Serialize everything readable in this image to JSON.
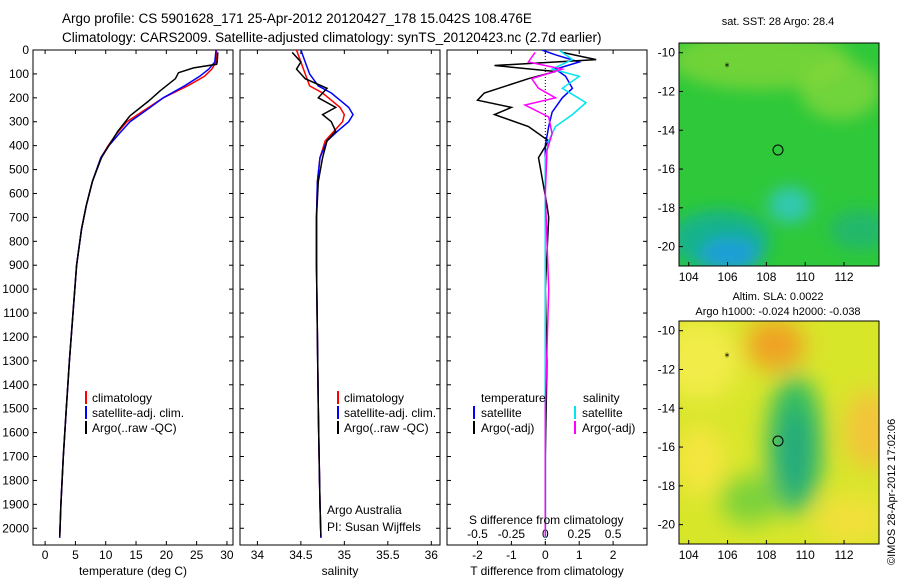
{
  "header": {
    "title_line1": "Argo profile: CS 5901628_171 25-Apr-2012 20120427_178 15.042S 108.476E",
    "title_line2": "Climatology: CARS2009. Satellite-adjusted climatology: synTS_20120423.nc (2.7d earlier)"
  },
  "colors": {
    "climatology": "#ff0000",
    "satellite": "#0000ff",
    "argo": "#000000",
    "salinity_satellite": "#00e5ee",
    "salinity_argo": "#ff00ff"
  },
  "chart_data": [
    {
      "type": "line",
      "name": "temperature-profile",
      "xlabel": "temperature (deg C)",
      "xlim": [
        -2,
        31
      ],
      "ylim": [
        2070,
        0
      ],
      "xticks": [
        "0",
        "5",
        "10",
        "15",
        "20",
        "25",
        "30"
      ],
      "xtick_values": [
        0,
        5,
        10,
        15,
        20,
        25,
        30
      ],
      "yticks": [
        "0",
        "100",
        "200",
        "300",
        "400",
        "500",
        "600",
        "700",
        "800",
        "900",
        "1000",
        "1100",
        "1200",
        "1300",
        "1400",
        "1500",
        "1600",
        "1700",
        "1800",
        "1900",
        "2000"
      ],
      "ytick_values": [
        0,
        100,
        200,
        300,
        400,
        500,
        600,
        700,
        800,
        900,
        1000,
        1100,
        1200,
        1300,
        1400,
        1500,
        1600,
        1700,
        1800,
        1900,
        2000
      ],
      "legend": [
        "climatology",
        "satellite-adj. clim.",
        "Argo(..raw -QC)"
      ],
      "series": [
        {
          "name": "climatology",
          "color": "#ff0000",
          "x": [
            28.3,
            28.2,
            27.5,
            26.3,
            23.5,
            19.5,
            16.5,
            13.5,
            11.8,
            10.4,
            9.2,
            7.8,
            6.8,
            6.0,
            5.2,
            4.6,
            4.0,
            3.5,
            3.0,
            2.6,
            2.4
          ],
          "y": [
            0,
            50,
            80,
            110,
            150,
            200,
            250,
            300,
            350,
            400,
            450,
            550,
            650,
            750,
            900,
            1100,
            1300,
            1500,
            1700,
            1900,
            2040
          ]
        },
        {
          "name": "satellite-adj. clim.",
          "color": "#0000ff",
          "x": [
            28.2,
            28.0,
            27.0,
            25.5,
            23.0,
            19.5,
            16.8,
            14.0,
            12.2,
            10.5,
            9.2,
            7.8,
            6.8,
            6.0,
            5.2,
            4.6,
            4.0,
            3.5,
            3.0,
            2.6,
            2.4
          ],
          "y": [
            0,
            50,
            80,
            110,
            150,
            200,
            250,
            300,
            350,
            400,
            450,
            550,
            650,
            750,
            900,
            1100,
            1300,
            1500,
            1700,
            1900,
            2040
          ]
        },
        {
          "name": "Argo(..raw -QC)",
          "color": "#000000",
          "x": [
            28.5,
            28.4,
            28.3,
            24.5,
            22.0,
            21.5,
            19.0,
            17.0,
            14.0,
            12.0,
            10.5,
            9.3,
            7.8,
            6.8,
            6.0,
            5.2,
            4.6,
            4.0,
            3.5,
            3.0,
            2.6,
            2.4
          ],
          "y": [
            10,
            50,
            60,
            75,
            95,
            120,
            170,
            215,
            275,
            340,
            400,
            450,
            550,
            650,
            750,
            900,
            1100,
            1300,
            1500,
            1700,
            1900,
            2035
          ]
        }
      ]
    },
    {
      "type": "line",
      "name": "salinity-profile",
      "xlabel": "salinity",
      "xlim": [
        33.8,
        36.1
      ],
      "ylim": [
        2070,
        0
      ],
      "xticks": [
        "34",
        "34.5",
        "35",
        "35.5",
        "36"
      ],
      "xtick_values": [
        34,
        34.5,
        35,
        35.5,
        36
      ],
      "legend": [
        "climatology",
        "satellite-adj. clim.",
        "Argo(..raw -QC)"
      ],
      "annotations": [
        "Argo Australia",
        "PI: Susan Wijffels"
      ],
      "series": [
        {
          "name": "climatology",
          "color": "#ff0000",
          "x": [
            34.45,
            34.5,
            34.55,
            34.6,
            34.75,
            34.85,
            34.95,
            35.0,
            34.98,
            34.88,
            34.78,
            34.72,
            34.69,
            34.68,
            34.68,
            34.69,
            34.7,
            34.71,
            34.72,
            34.73
          ],
          "y": [
            0,
            50,
            100,
            150,
            180,
            210,
            240,
            270,
            300,
            340,
            380,
            450,
            550,
            700,
            900,
            1200,
            1500,
            1700,
            1900,
            2040
          ]
        },
        {
          "name": "satellite-adj. clim.",
          "color": "#0000ff",
          "x": [
            34.5,
            34.55,
            34.6,
            34.7,
            34.85,
            34.95,
            35.05,
            35.1,
            35.05,
            34.92,
            34.8,
            34.72,
            34.69,
            34.68,
            34.68,
            34.69,
            34.7,
            34.71,
            34.72,
            34.73
          ],
          "y": [
            0,
            50,
            100,
            150,
            180,
            210,
            240,
            270,
            300,
            340,
            380,
            450,
            550,
            700,
            900,
            1200,
            1500,
            1700,
            1900,
            2040
          ]
        },
        {
          "name": "Argo(..raw -QC)",
          "color": "#000000",
          "x": [
            34.4,
            34.5,
            34.45,
            34.55,
            34.8,
            34.7,
            34.9,
            34.75,
            34.85,
            34.9,
            34.8,
            34.75,
            34.7,
            34.68,
            34.68,
            34.69,
            34.7,
            34.71,
            34.72,
            34.73
          ],
          "y": [
            10,
            50,
            80,
            120,
            160,
            200,
            240,
            270,
            300,
            340,
            380,
            450,
            550,
            700,
            900,
            1200,
            1500,
            1700,
            1900,
            2035
          ]
        }
      ]
    },
    {
      "type": "line",
      "name": "difference-profile",
      "xlabel": "T difference from climatology",
      "xlabel_top": "S difference from climatology",
      "xlim": [
        -2.9,
        3.0
      ],
      "ylim": [
        2070,
        0
      ],
      "xticks": [
        "-2",
        "-1",
        "0",
        "1",
        "2"
      ],
      "xtick_values": [
        -2,
        -1,
        0,
        1,
        2
      ],
      "sticks": [
        "-0.5",
        "-0.25",
        "0",
        "0.25",
        "0.5"
      ],
      "stick_values": [
        -2,
        -1,
        0,
        1,
        2
      ],
      "legend_left_title": "temperature",
      "legend_left": [
        "satellite",
        "Argo(-adj)"
      ],
      "legend_right_title": "salinity",
      "legend_right": [
        "satellite",
        "Argo(-adj)"
      ],
      "series": [
        {
          "name": "T satellite",
          "color": "#0000ff",
          "x": [
            -0.1,
            0.3,
            1.0,
            0.3,
            0.6,
            0.8,
            0.5,
            0.2,
            0.1,
            0,
            0,
            0,
            0,
            0,
            0
          ],
          "y": [
            0,
            20,
            50,
            80,
            110,
            160,
            200,
            260,
            320,
            400,
            500,
            800,
            1200,
            1600,
            2040
          ]
        },
        {
          "name": "T Argo(-adj)",
          "color": "#000000",
          "x": [
            0.5,
            1.5,
            -1.5,
            0.3,
            -0.5,
            -1.8,
            -2.0,
            -1.0,
            -1.5,
            -0.5,
            0.1,
            -0.2,
            0.05,
            0.1,
            0,
            0.05,
            0,
            0
          ],
          "y": [
            10,
            40,
            65,
            90,
            120,
            180,
            210,
            240,
            270,
            320,
            380,
            450,
            650,
            700,
            1000,
            1300,
            1700,
            2035
          ]
        },
        {
          "name": "S satellite",
          "color": "#00e5ee",
          "x": [
            0.4,
            0.8,
            0.2,
            1.0,
            0.5,
            1.2,
            0.8,
            0.3,
            0.1,
            0,
            0,
            0,
            0
          ],
          "y": [
            0,
            40,
            80,
            110,
            160,
            220,
            270,
            320,
            380,
            450,
            800,
            1400,
            2040
          ]
        },
        {
          "name": "S Argo(-adj)",
          "color": "#ff00ff",
          "x": [
            -0.3,
            -0.5,
            0.5,
            -0.4,
            -0.2,
            0.3,
            -0.6,
            0.1,
            0.2,
            0.05,
            0,
            0.1,
            0,
            0
          ],
          "y": [
            10,
            50,
            80,
            120,
            160,
            200,
            230,
            280,
            350,
            420,
            600,
            1000,
            1500,
            2035
          ]
        }
      ]
    },
    {
      "type": "heatmap",
      "name": "sst-map",
      "title": "sat. SST: 28 Argo: 28.4",
      "xticks": [
        "104",
        "106",
        "108",
        "110",
        "112"
      ],
      "xtick_values": [
        104,
        106,
        108,
        110,
        112
      ],
      "yticks": [
        "-10",
        "-12",
        "-14",
        "-16",
        "-18",
        "-20"
      ],
      "ytick_values": [
        -10,
        -12,
        -14,
        -16,
        -18,
        -20
      ],
      "xlim": [
        103.5,
        113.8
      ],
      "ylim": [
        -21.0,
        -9.5
      ],
      "marker": {
        "lon": 108.476,
        "lat": -15.042
      },
      "track": {
        "lon": 105.7,
        "lat": -10.9
      }
    },
    {
      "type": "heatmap",
      "name": "sla-map",
      "title_line1": "Altim. SLA: 0.0022",
      "title_line2": "Argo h1000: -0.024 h2000: -0.038",
      "xticks": [
        "104",
        "106",
        "108",
        "110",
        "112"
      ],
      "xtick_values": [
        104,
        106,
        108,
        110,
        112
      ],
      "yticks": [
        "-10",
        "-12",
        "-14",
        "-16",
        "-18",
        "-20"
      ],
      "ytick_values": [
        -10,
        -12,
        -14,
        -16,
        -18,
        -20
      ],
      "xlim": [
        103.5,
        113.8
      ],
      "ylim": [
        -21.0,
        -9.5
      ],
      "marker": {
        "lon": 108.476,
        "lat": -15.042
      },
      "track": {
        "lon": 105.7,
        "lat": -10.9
      }
    }
  ],
  "footer": {
    "stamp": "©IMOS 28-Apr-2012 17:02:06"
  }
}
